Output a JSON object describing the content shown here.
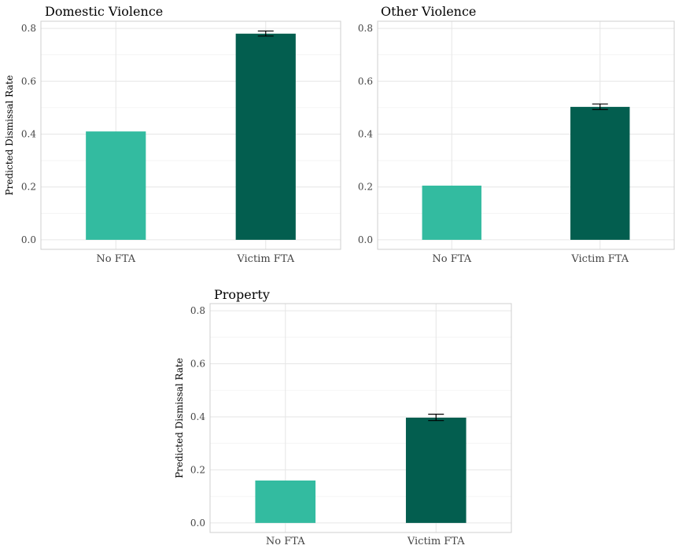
{
  "chart_data": [
    {
      "type": "bar",
      "title": "Domestic Violence",
      "ylabel": "Predicted Dismissal Rate",
      "xlabel": "",
      "categories": [
        "No FTA",
        "Victim FTA"
      ],
      "values": [
        0.41,
        0.78
      ],
      "error_low": [
        null,
        0.771
      ],
      "error_high": [
        null,
        0.79
      ],
      "colors": [
        "#33BBA0",
        "#035E4F"
      ],
      "ylim": [
        0,
        0.8
      ],
      "yticks": [
        "0.0",
        "0.2",
        "0.4",
        "0.6",
        "0.8"
      ],
      "grid": true
    },
    {
      "type": "bar",
      "title": "Other Violence",
      "ylabel": "",
      "xlabel": "",
      "categories": [
        "No FTA",
        "Victim FTA"
      ],
      "values": [
        0.205,
        0.503
      ],
      "error_low": [
        null,
        0.493
      ],
      "error_high": [
        null,
        0.514
      ],
      "colors": [
        "#33BBA0",
        "#035E4F"
      ],
      "ylim": [
        0,
        0.8
      ],
      "yticks": [
        "0.0",
        "0.2",
        "0.4",
        "0.6",
        "0.8"
      ],
      "grid": true
    },
    {
      "type": "bar",
      "title": "Property",
      "ylabel": "Predicted Dismissal Rate",
      "xlabel": "",
      "categories": [
        "No FTA",
        "Victim FTA"
      ],
      "values": [
        0.16,
        0.397
      ],
      "error_low": [
        null,
        0.386
      ],
      "error_high": [
        null,
        0.41
      ],
      "colors": [
        "#33BBA0",
        "#035E4F"
      ],
      "ylim": [
        0,
        0.8
      ],
      "yticks": [
        "0.0",
        "0.2",
        "0.4",
        "0.6",
        "0.8"
      ],
      "grid": true
    }
  ]
}
